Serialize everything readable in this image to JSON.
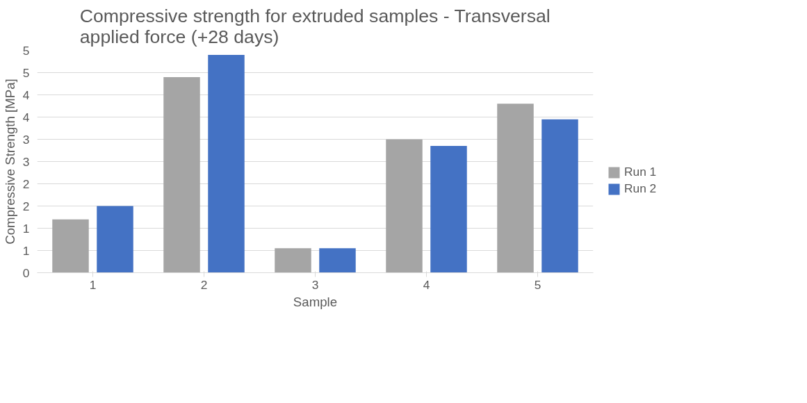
{
  "chart_data": {
    "type": "bar",
    "title": "Compressive strength for extruded samples - Transversal applied force (+28 days)",
    "xlabel": "Sample",
    "ylabel": "Compressive Strength [MPa]",
    "categories": [
      "1",
      "2",
      "3",
      "4",
      "5"
    ],
    "series": [
      {
        "name": "Run 1",
        "color": "#a5a5a5",
        "values": [
          1.2,
          4.4,
          0.55,
          3.0,
          3.8
        ]
      },
      {
        "name": "Run 2",
        "color": "#4472c4",
        "values": [
          1.5,
          4.9,
          0.55,
          2.85,
          3.45
        ]
      }
    ],
    "ylim": [
      0,
      5.0
    ],
    "yticks": [
      0,
      {
        "value": 0.5,
        "label": "1"
      },
      1,
      {
        "value": 1.5,
        "label": "2"
      },
      2,
      {
        "value": 2.5,
        "label": "3"
      },
      3,
      {
        "value": 3.5,
        "label": "4"
      },
      4,
      {
        "value": 4.5,
        "label": "5"
      },
      5
    ],
    "grid": "y",
    "legend": "right"
  }
}
